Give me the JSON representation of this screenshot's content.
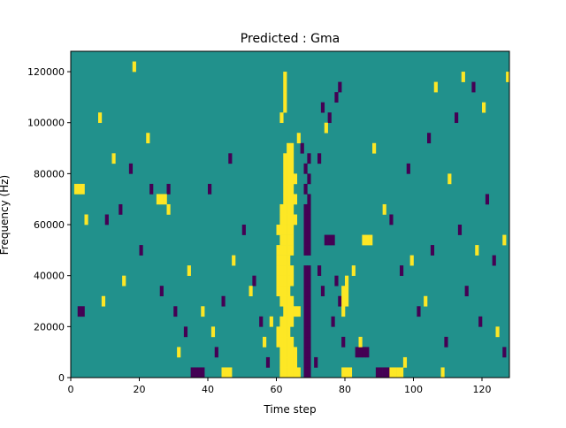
{
  "chart_data": {
    "type": "heatmap",
    "title": "Predicted : Gma",
    "xlabel": "Time step",
    "ylabel": "Frequency (Hz)",
    "xlim": [
      0,
      128
    ],
    "ylim": [
      0,
      128000
    ],
    "x_ticks": [
      0,
      20,
      40,
      60,
      80,
      100,
      120
    ],
    "y_ticks": [
      0,
      20000,
      40000,
      60000,
      80000,
      100000,
      120000
    ],
    "x_tick_labels": [
      "0",
      "20",
      "40",
      "60",
      "80",
      "100",
      "120"
    ],
    "y_tick_labels": [
      "0",
      "20000",
      "40000",
      "60000",
      "80000",
      "100000",
      "120000"
    ],
    "value_levels": [
      -1,
      0,
      1
    ],
    "background_value": 0,
    "colormap": {
      "-1": "#440154",
      "0": "#21918c",
      "1": "#fde725"
    },
    "cells": [
      [
        61,
        0,
        1
      ],
      [
        62,
        0,
        1
      ],
      [
        63,
        0,
        1
      ],
      [
        64,
        0,
        1
      ],
      [
        65,
        0,
        1
      ],
      [
        66,
        0,
        1
      ],
      [
        61,
        4000,
        1
      ],
      [
        62,
        4000,
        1
      ],
      [
        63,
        4000,
        1
      ],
      [
        64,
        4000,
        1
      ],
      [
        65,
        4000,
        1
      ],
      [
        61,
        8000,
        1
      ],
      [
        62,
        8000,
        1
      ],
      [
        63,
        8000,
        1
      ],
      [
        64,
        8000,
        1
      ],
      [
        65,
        8000,
        1
      ],
      [
        60,
        12000,
        1
      ],
      [
        61,
        12000,
        1
      ],
      [
        62,
        12000,
        1
      ],
      [
        63,
        12000,
        1
      ],
      [
        64,
        12000,
        1
      ],
      [
        60,
        16000,
        1
      ],
      [
        61,
        16000,
        1
      ],
      [
        62,
        16000,
        1
      ],
      [
        63,
        16000,
        1
      ],
      [
        61,
        20000,
        1
      ],
      [
        62,
        20000,
        1
      ],
      [
        63,
        20000,
        1
      ],
      [
        64,
        20000,
        1
      ],
      [
        62,
        24000,
        1
      ],
      [
        63,
        24000,
        1
      ],
      [
        64,
        24000,
        1
      ],
      [
        65,
        24000,
        1
      ],
      [
        66,
        24000,
        1
      ],
      [
        61,
        28000,
        1
      ],
      [
        62,
        28000,
        1
      ],
      [
        63,
        28000,
        1
      ],
      [
        64,
        28000,
        1
      ],
      [
        60,
        32000,
        1
      ],
      [
        61,
        32000,
        1
      ],
      [
        62,
        32000,
        1
      ],
      [
        63,
        32000,
        1
      ],
      [
        60,
        36000,
        1
      ],
      [
        61,
        36000,
        1
      ],
      [
        62,
        36000,
        1
      ],
      [
        63,
        36000,
        1
      ],
      [
        64,
        36000,
        1
      ],
      [
        60,
        40000,
        1
      ],
      [
        61,
        40000,
        1
      ],
      [
        62,
        40000,
        1
      ],
      [
        63,
        40000,
        1
      ],
      [
        64,
        40000,
        1
      ],
      [
        60,
        44000,
        1
      ],
      [
        61,
        44000,
        1
      ],
      [
        62,
        44000,
        1
      ],
      [
        63,
        44000,
        1
      ],
      [
        60,
        48000,
        1
      ],
      [
        61,
        48000,
        1
      ],
      [
        62,
        48000,
        1
      ],
      [
        63,
        48000,
        1
      ],
      [
        64,
        48000,
        1
      ],
      [
        61,
        52000,
        1
      ],
      [
        62,
        52000,
        1
      ],
      [
        63,
        52000,
        1
      ],
      [
        64,
        52000,
        1
      ],
      [
        60,
        56000,
        1
      ],
      [
        61,
        56000,
        1
      ],
      [
        62,
        56000,
        1
      ],
      [
        63,
        56000,
        1
      ],
      [
        64,
        56000,
        1
      ],
      [
        61,
        60000,
        1
      ],
      [
        62,
        60000,
        1
      ],
      [
        63,
        60000,
        1
      ],
      [
        64,
        60000,
        1
      ],
      [
        65,
        60000,
        1
      ],
      [
        61,
        64000,
        1
      ],
      [
        62,
        64000,
        1
      ],
      [
        63,
        64000,
        1
      ],
      [
        64,
        64000,
        1
      ],
      [
        62,
        68000,
        1
      ],
      [
        63,
        68000,
        1
      ],
      [
        64,
        68000,
        1
      ],
      [
        65,
        68000,
        1
      ],
      [
        62,
        72000,
        1
      ],
      [
        63,
        72000,
        1
      ],
      [
        64,
        72000,
        1
      ],
      [
        62,
        76000,
        1
      ],
      [
        63,
        76000,
        1
      ],
      [
        64,
        76000,
        1
      ],
      [
        65,
        76000,
        1
      ],
      [
        62,
        80000,
        1
      ],
      [
        63,
        80000,
        1
      ],
      [
        64,
        80000,
        1
      ],
      [
        62,
        84000,
        1
      ],
      [
        63,
        84000,
        1
      ],
      [
        64,
        84000,
        1
      ],
      [
        63,
        88000,
        1
      ],
      [
        64,
        88000,
        1
      ],
      [
        61,
        100000,
        1
      ],
      [
        62,
        104000,
        1
      ],
      [
        62,
        108000,
        1
      ],
      [
        62,
        112000,
        1
      ],
      [
        62,
        116000,
        1
      ],
      [
        68,
        0,
        -1
      ],
      [
        69,
        0,
        -1
      ],
      [
        68,
        4000,
        -1
      ],
      [
        69,
        4000,
        -1
      ],
      [
        68,
        8000,
        -1
      ],
      [
        69,
        8000,
        -1
      ],
      [
        68,
        12000,
        -1
      ],
      [
        69,
        12000,
        -1
      ],
      [
        68,
        16000,
        -1
      ],
      [
        69,
        16000,
        -1
      ],
      [
        68,
        20000,
        -1
      ],
      [
        69,
        20000,
        -1
      ],
      [
        68,
        24000,
        -1
      ],
      [
        69,
        24000,
        -1
      ],
      [
        68,
        28000,
        -1
      ],
      [
        69,
        28000,
        -1
      ],
      [
        68,
        32000,
        -1
      ],
      [
        69,
        32000,
        -1
      ],
      [
        68,
        36000,
        -1
      ],
      [
        69,
        36000,
        -1
      ],
      [
        68,
        40000,
        -1
      ],
      [
        69,
        40000,
        -1
      ],
      [
        68,
        48000,
        -1
      ],
      [
        69,
        48000,
        -1
      ],
      [
        68,
        52000,
        -1
      ],
      [
        69,
        52000,
        -1
      ],
      [
        68,
        56000,
        -1
      ],
      [
        69,
        56000,
        -1
      ],
      [
        68,
        60000,
        -1
      ],
      [
        69,
        60000,
        -1
      ],
      [
        68,
        64000,
        -1
      ],
      [
        69,
        64000,
        -1
      ],
      [
        69,
        68000,
        -1
      ],
      [
        68,
        72000,
        -1
      ],
      [
        69,
        76000,
        -1
      ],
      [
        68,
        80000,
        -1
      ],
      [
        69,
        84000,
        -1
      ],
      [
        67,
        88000,
        -1
      ],
      [
        35,
        0,
        -1
      ],
      [
        36,
        0,
        -1
      ],
      [
        37,
        0,
        -1
      ],
      [
        38,
        0,
        -1
      ],
      [
        89,
        0,
        -1
      ],
      [
        90,
        0,
        -1
      ],
      [
        91,
        0,
        -1
      ],
      [
        92,
        0,
        -1
      ],
      [
        83,
        8000,
        -1
      ],
      [
        84,
        8000,
        -1
      ],
      [
        85,
        8000,
        -1
      ],
      [
        86,
        8000,
        -1
      ],
      [
        2,
        24000,
        -1
      ],
      [
        3,
        24000,
        -1
      ],
      [
        77,
        36000,
        -1
      ],
      [
        78,
        28000,
        -1
      ],
      [
        76,
        20000,
        -1
      ],
      [
        79,
        12000,
        -1
      ],
      [
        72,
        40000,
        -1
      ],
      [
        73,
        32000,
        -1
      ],
      [
        71,
        4000,
        -1
      ],
      [
        74,
        52000,
        -1
      ],
      [
        75,
        52000,
        -1
      ],
      [
        76,
        52000,
        -1
      ],
      [
        23,
        72000,
        -1
      ],
      [
        28,
        72000,
        -1
      ],
      [
        40,
        72000,
        -1
      ],
      [
        72,
        84000,
        -1
      ],
      [
        75,
        100000,
        -1
      ],
      [
        73,
        104000,
        -1
      ],
      [
        78,
        112000,
        -1
      ],
      [
        77,
        108000,
        -1
      ],
      [
        98,
        80000,
        -1
      ],
      [
        104,
        92000,
        -1
      ],
      [
        117,
        112000,
        -1
      ],
      [
        121,
        68000,
        -1
      ],
      [
        115,
        32000,
        -1
      ],
      [
        10,
        60000,
        -1
      ],
      [
        14,
        64000,
        -1
      ],
      [
        17,
        80000,
        -1
      ],
      [
        20,
        48000,
        -1
      ],
      [
        26,
        32000,
        -1
      ],
      [
        30,
        24000,
        -1
      ],
      [
        33,
        16000,
        -1
      ],
      [
        42,
        8000,
        -1
      ],
      [
        44,
        28000,
        -1
      ],
      [
        46,
        84000,
        -1
      ],
      [
        50,
        56000,
        -1
      ],
      [
        53,
        36000,
        -1
      ],
      [
        55,
        20000,
        -1
      ],
      [
        57,
        4000,
        -1
      ],
      [
        93,
        60000,
        -1
      ],
      [
        96,
        40000,
        -1
      ],
      [
        101,
        24000,
        -1
      ],
      [
        105,
        48000,
        -1
      ],
      [
        109,
        12000,
        -1
      ],
      [
        112,
        100000,
        -1
      ],
      [
        113,
        56000,
        -1
      ],
      [
        119,
        20000,
        -1
      ],
      [
        123,
        44000,
        -1
      ],
      [
        126,
        8000,
        -1
      ],
      [
        79,
        0,
        1
      ],
      [
        80,
        0,
        1
      ],
      [
        81,
        0,
        1
      ],
      [
        44,
        0,
        1
      ],
      [
        45,
        0,
        1
      ],
      [
        46,
        0,
        1
      ],
      [
        93,
        0,
        1
      ],
      [
        94,
        0,
        1
      ],
      [
        95,
        0,
        1
      ],
      [
        96,
        0,
        1
      ],
      [
        1,
        72000,
        1
      ],
      [
        2,
        72000,
        1
      ],
      [
        3,
        72000,
        1
      ],
      [
        25,
        68000,
        1
      ],
      [
        26,
        68000,
        1
      ],
      [
        27,
        68000,
        1
      ],
      [
        79,
        32000,
        1
      ],
      [
        80,
        32000,
        1
      ],
      [
        79,
        28000,
        1
      ],
      [
        80,
        28000,
        1
      ],
      [
        79,
        24000,
        1
      ],
      [
        80,
        36000,
        1
      ],
      [
        85,
        52000,
        1
      ],
      [
        86,
        52000,
        1
      ],
      [
        87,
        52000,
        1
      ],
      [
        4,
        60000,
        1
      ],
      [
        8,
        100000,
        1
      ],
      [
        12,
        84000,
        1
      ],
      [
        18,
        120000,
        1
      ],
      [
        22,
        92000,
        1
      ],
      [
        28,
        64000,
        1
      ],
      [
        34,
        40000,
        1
      ],
      [
        38,
        24000,
        1
      ],
      [
        41,
        16000,
        1
      ],
      [
        47,
        44000,
        1
      ],
      [
        52,
        32000,
        1
      ],
      [
        56,
        12000,
        1
      ],
      [
        58,
        20000,
        1
      ],
      [
        66,
        92000,
        1
      ],
      [
        74,
        96000,
        1
      ],
      [
        82,
        40000,
        1
      ],
      [
        84,
        12000,
        1
      ],
      [
        88,
        88000,
        1
      ],
      [
        91,
        64000,
        1
      ],
      [
        97,
        4000,
        1
      ],
      [
        99,
        44000,
        1
      ],
      [
        103,
        28000,
        1
      ],
      [
        106,
        112000,
        1
      ],
      [
        108,
        0,
        1
      ],
      [
        110,
        76000,
        1
      ],
      [
        114,
        116000,
        1
      ],
      [
        118,
        48000,
        1
      ],
      [
        120,
        104000,
        1
      ],
      [
        124,
        16000,
        1
      ],
      [
        126,
        52000,
        1
      ],
      [
        127,
        116000,
        1
      ],
      [
        9,
        28000,
        1
      ],
      [
        15,
        36000,
        1
      ],
      [
        31,
        8000,
        1
      ]
    ]
  }
}
